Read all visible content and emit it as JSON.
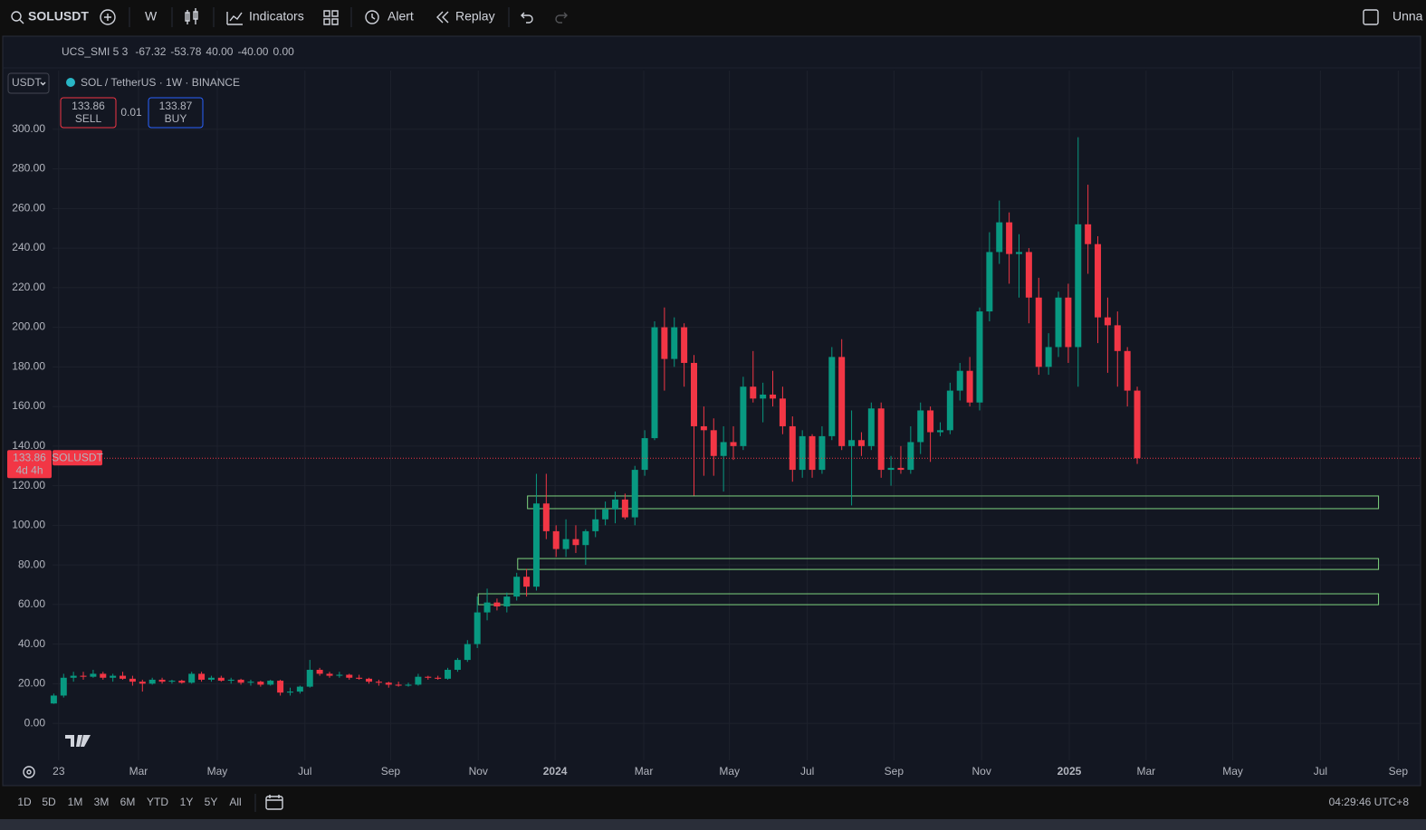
{
  "toolbar": {
    "symbol": "SOLUSDT",
    "interval": "W",
    "indicators": "Indicators",
    "alert": "Alert",
    "replay": "Replay",
    "layout": "Unna"
  },
  "chart_data": {
    "type": "candlestick",
    "title": "SOL / TetherUS · 1W · BINANCE",
    "currency": "USDT",
    "indicator": {
      "name": "UCS_SMI 5 3",
      "values": [
        -67.32,
        -53.78,
        40,
        -40,
        0
      ],
      "value_labels": [
        "-67.32",
        "-53.78",
        "40.00",
        "-40.00",
        "0.00"
      ],
      "colors": [
        "#5b9cf6",
        "#f23645",
        "#f23645",
        "#089981",
        "#2962ff"
      ]
    },
    "sell": {
      "value": 133.86,
      "label": "SELL"
    },
    "buy": {
      "value": 133.87,
      "label": "BUY"
    },
    "spread": 0.01,
    "last_price": {
      "value": 133.86,
      "countdown": "4d 4h",
      "symbol": "SOLUSDT"
    },
    "up_color": "#089981",
    "down_color": "#f23645",
    "grid": true,
    "open": [
      10,
      14,
      23,
      24,
      23.5,
      25,
      23,
      24,
      22.5,
      21,
      20,
      22,
      21,
      21.5,
      20.5,
      25,
      22,
      23,
      21.5,
      22,
      20.5,
      21,
      19.5,
      21.5,
      15.5,
      16,
      18.5,
      27,
      25,
      24,
      24.5,
      23,
      22.5,
      21,
      20.5,
      19.5,
      19,
      19.5,
      23.5,
      23,
      22.5,
      27,
      32,
      40,
      56,
      61,
      59,
      64,
      74,
      69,
      111,
      97,
      88,
      93,
      90,
      97,
      103,
      108,
      113,
      104,
      128,
      144,
      200,
      184,
      200,
      182,
      150,
      148,
      135,
      142,
      140,
      170,
      164,
      166,
      164,
      150,
      128,
      145,
      128,
      145,
      185,
      140,
      143,
      140,
      159,
      128,
      129,
      128,
      142,
      158,
      147,
      148,
      168,
      178,
      162,
      208,
      238,
      253,
      237,
      238,
      215,
      180,
      190,
      215,
      190,
      252,
      242,
      205,
      201,
      188,
      168
    ],
    "high": [
      15,
      25,
      26,
      26,
      27,
      26,
      25,
      26,
      24,
      22,
      23,
      23,
      22,
      22,
      26,
      26,
      24,
      24,
      23,
      22.5,
      22,
      21.5,
      22,
      22,
      18,
      19,
      32,
      28,
      26,
      26,
      25,
      24.5,
      23,
      22,
      21,
      21,
      20.5,
      25,
      24,
      24,
      28,
      33,
      42,
      64,
      68,
      63,
      66,
      76,
      78,
      126,
      126,
      100,
      103,
      100,
      98,
      108,
      112,
      117,
      116,
      130,
      148,
      203,
      210,
      205,
      202,
      186,
      160,
      154,
      150,
      150,
      175,
      188,
      172,
      178,
      170,
      155,
      148,
      146,
      150,
      190,
      194,
      158,
      147,
      162,
      162,
      135,
      140,
      150,
      162,
      160,
      152,
      172,
      182,
      185,
      210,
      248,
      264,
      258,
      247,
      240,
      225,
      197,
      218,
      222,
      296,
      272,
      246,
      215,
      208,
      190,
      170
    ],
    "low": [
      9.8,
      13,
      21,
      22,
      23,
      22,
      21,
      22,
      19,
      16,
      19.5,
      20,
      20,
      20,
      20,
      21,
      21,
      21,
      20,
      19.5,
      19,
      18.5,
      19,
      14,
      14,
      15,
      18,
      24,
      23,
      23,
      22,
      22,
      20,
      19,
      18,
      18.5,
      18.5,
      19,
      22,
      22,
      22,
      26,
      31,
      38,
      52,
      57,
      56,
      62,
      64,
      67,
      93,
      84,
      84,
      86,
      80,
      94,
      100,
      101,
      103,
      100,
      125,
      143,
      168,
      180,
      170,
      115,
      125,
      125,
      117,
      133,
      138,
      162,
      152,
      160,
      146,
      122,
      124,
      124,
      126,
      143,
      138,
      110,
      135,
      138,
      124,
      120,
      126,
      126,
      136,
      132,
      145,
      146,
      163,
      160,
      158,
      203,
      232,
      222,
      215,
      202,
      176,
      176,
      185,
      182,
      170,
      227,
      192,
      177,
      170,
      160,
      131
    ],
    "close": [
      14,
      23,
      24,
      23.5,
      25,
      23,
      24,
      22.5,
      21,
      20,
      22,
      21,
      21.5,
      20.5,
      25,
      22,
      23,
      21.5,
      22,
      20.5,
      21,
      19.5,
      21.5,
      15.5,
      16,
      18.5,
      27,
      25,
      24,
      24.5,
      23,
      22.5,
      21,
      20.5,
      19.5,
      19,
      19.5,
      23.5,
      23,
      22.5,
      27,
      32,
      40,
      56,
      61,
      59,
      64,
      74,
      69,
      111,
      97,
      88,
      93,
      90,
      97,
      103,
      108,
      113,
      104,
      128,
      144,
      200,
      184,
      200,
      182,
      150,
      148,
      135,
      142,
      140,
      170,
      164,
      166,
      164,
      150,
      128,
      145,
      128,
      145,
      185,
      140,
      143,
      140,
      159,
      128,
      129,
      128,
      142,
      158,
      147,
      148,
      168,
      178,
      162,
      208,
      238,
      253,
      237,
      238,
      215,
      180,
      190,
      215,
      190,
      252,
      242,
      205,
      201,
      188,
      168,
      133.86
    ],
    "zones": [
      {
        "x": [
          48.1,
          134.5
        ],
        "y": [
          108.4,
          114.8
        ]
      },
      {
        "x": [
          47.1,
          134.5
        ],
        "y": [
          77.7,
          83.2
        ]
      },
      {
        "x": [
          43.1,
          134.5
        ],
        "y": [
          59.9,
          65.4
        ]
      }
    ],
    "zone_color": "#7ed37e",
    "xlim": [
      -5,
      138.4
    ],
    "xticks": [
      {
        "value": 0.5,
        "label": "23"
      },
      {
        "value": 8.6,
        "label": "Mar"
      },
      {
        "value": 16.6,
        "label": "May"
      },
      {
        "value": 25.5,
        "label": "Jul"
      },
      {
        "value": 34.2,
        "label": "Sep"
      },
      {
        "value": 43.1,
        "label": "Nov"
      },
      {
        "value": 50.9,
        "label": "2024"
      },
      {
        "value": 59.9,
        "label": "Mar"
      },
      {
        "value": 68.6,
        "label": "May"
      },
      {
        "value": 76.5,
        "label": "Jul"
      },
      {
        "value": 85.3,
        "label": "Sep"
      },
      {
        "value": 94.2,
        "label": "Nov"
      },
      {
        "value": 103.1,
        "label": "2025"
      },
      {
        "value": 110.9,
        "label": "Mar"
      },
      {
        "value": 119.7,
        "label": "May"
      },
      {
        "value": 128.6,
        "label": "Jul"
      },
      {
        "value": 136.5,
        "label": "Sep"
      }
    ],
    "ylim": [
      -18.7,
      331
    ],
    "yticks": [
      {
        "value": 0,
        "label": "0.00"
      },
      {
        "value": 20,
        "label": "20.00"
      },
      {
        "value": 40,
        "label": "40.00"
      },
      {
        "value": 60,
        "label": "60.00"
      },
      {
        "value": 80,
        "label": "80.00"
      },
      {
        "value": 100,
        "label": "100.00"
      },
      {
        "value": 120,
        "label": "120.00"
      },
      {
        "value": 140,
        "label": "140.00"
      },
      {
        "value": 160,
        "label": "160.00"
      },
      {
        "value": 180,
        "label": "180.00"
      },
      {
        "value": 200,
        "label": "200.00"
      },
      {
        "value": 220,
        "label": "220.00"
      },
      {
        "value": 240,
        "label": "240.00"
      },
      {
        "value": 260,
        "label": "260.00"
      },
      {
        "value": 280,
        "label": "280.00"
      },
      {
        "value": 300,
        "label": "300.00"
      }
    ]
  },
  "timeframes": [
    "1D",
    "5D",
    "1M",
    "3M",
    "6M",
    "YTD",
    "1Y",
    "5Y",
    "All"
  ],
  "clock": "04:29:46 UTC+8"
}
